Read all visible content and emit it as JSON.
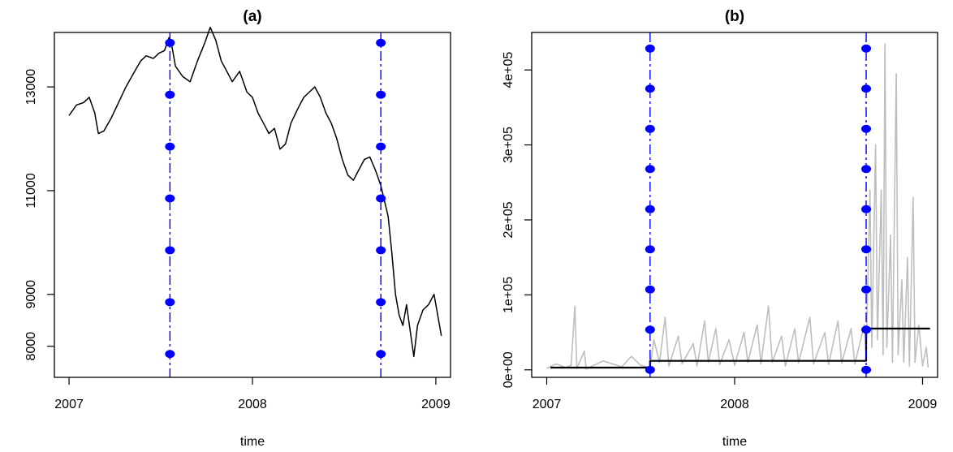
{
  "chart_data": [
    {
      "type": "line",
      "title": "(a)",
      "xlabel": "time",
      "ylabel": "",
      "xlim": [
        2006.92,
        2009.08
      ],
      "ylim": [
        7400,
        14050
      ],
      "x_ticks": [
        2007,
        2008,
        2009
      ],
      "x_tick_labels": [
        "2007",
        "2008",
        "2009"
      ],
      "y_ticks": [
        8000,
        9000,
        11000,
        13000
      ],
      "y_tick_labels": [
        "8000",
        "9000",
        "11000",
        "13000"
      ],
      "grid": false,
      "series": [
        {
          "color": "#000000",
          "points": [
            [
              2007.0,
              12450
            ],
            [
              2007.04,
              12650
            ],
            [
              2007.08,
              12700
            ],
            [
              2007.11,
              12800
            ],
            [
              2007.14,
              12500
            ],
            [
              2007.16,
              12100
            ],
            [
              2007.19,
              12150
            ],
            [
              2007.23,
              12400
            ],
            [
              2007.27,
              12700
            ],
            [
              2007.31,
              13000
            ],
            [
              2007.35,
              13250
            ],
            [
              2007.39,
              13500
            ],
            [
              2007.42,
              13600
            ],
            [
              2007.46,
              13550
            ],
            [
              2007.49,
              13650
            ],
            [
              2007.52,
              13700
            ],
            [
              2007.545,
              13950
            ],
            [
              2007.56,
              13800
            ],
            [
              2007.58,
              13400
            ],
            [
              2007.62,
              13200
            ],
            [
              2007.66,
              13100
            ],
            [
              2007.7,
              13500
            ],
            [
              2007.74,
              13850
            ],
            [
              2007.77,
              14150
            ],
            [
              2007.8,
              13900
            ],
            [
              2007.83,
              13500
            ],
            [
              2007.86,
              13300
            ],
            [
              2007.89,
              13100
            ],
            [
              2007.93,
              13300
            ],
            [
              2007.97,
              12900
            ],
            [
              2008.0,
              12800
            ],
            [
              2008.03,
              12500
            ],
            [
              2008.06,
              12300
            ],
            [
              2008.09,
              12100
            ],
            [
              2008.12,
              12200
            ],
            [
              2008.15,
              11800
            ],
            [
              2008.18,
              11900
            ],
            [
              2008.21,
              12300
            ],
            [
              2008.25,
              12600
            ],
            [
              2008.28,
              12800
            ],
            [
              2008.31,
              12900
            ],
            [
              2008.34,
              13000
            ],
            [
              2008.37,
              12800
            ],
            [
              2008.4,
              12500
            ],
            [
              2008.43,
              12300
            ],
            [
              2008.46,
              12000
            ],
            [
              2008.49,
              11600
            ],
            [
              2008.52,
              11300
            ],
            [
              2008.55,
              11200
            ],
            [
              2008.58,
              11400
            ],
            [
              2008.61,
              11600
            ],
            [
              2008.64,
              11650
            ],
            [
              2008.67,
              11400
            ],
            [
              2008.7,
              11100
            ],
            [
              2008.72,
              10800
            ],
            [
              2008.74,
              10500
            ],
            [
              2008.76,
              9800
            ],
            [
              2008.78,
              9000
            ],
            [
              2008.8,
              8600
            ],
            [
              2008.82,
              8400
            ],
            [
              2008.84,
              8800
            ],
            [
              2008.86,
              8300
            ],
            [
              2008.88,
              7800
            ],
            [
              2008.9,
              8400
            ],
            [
              2008.93,
              8700
            ],
            [
              2008.96,
              8800
            ],
            [
              2008.99,
              9000
            ],
            [
              2009.01,
              8600
            ],
            [
              2009.03,
              8200
            ]
          ]
        }
      ],
      "vlines": [
        {
          "x": 2007.55,
          "color": "#0000ff",
          "markers_y": [
            7850,
            8850,
            9850,
            10850,
            11850,
            12850,
            13850
          ]
        },
        {
          "x": 2008.7,
          "color": "#0000ff",
          "markers_y": [
            7850,
            8850,
            9850,
            10850,
            11850,
            12850,
            13850
          ]
        }
      ]
    },
    {
      "type": "line",
      "title": "(b)",
      "xlabel": "time",
      "ylabel": "",
      "xlim": [
        2006.92,
        2009.08
      ],
      "ylim": [
        -10000,
        450000
      ],
      "x_ticks": [
        2007,
        2008,
        2009
      ],
      "x_tick_labels": [
        "2007",
        "2008",
        "2009"
      ],
      "y_ticks": [
        0,
        100000,
        200000,
        300000,
        400000
      ],
      "y_tick_labels": [
        "0e+00",
        "1e+05",
        "2e+05",
        "3e+05",
        "4e+05"
      ],
      "grid": false,
      "series": [
        {
          "color": "#bebebe",
          "points": [
            [
              2007.0,
              2000
            ],
            [
              2007.05,
              8000
            ],
            [
              2007.1,
              3000
            ],
            [
              2007.13,
              6000
            ],
            [
              2007.15,
              85000
            ],
            [
              2007.16,
              2000
            ],
            [
              2007.2,
              25000
            ],
            [
              2007.21,
              1000
            ],
            [
              2007.3,
              12000
            ],
            [
              2007.4,
              4000
            ],
            [
              2007.45,
              18000
            ],
            [
              2007.5,
              6000
            ],
            [
              2007.55,
              3000
            ],
            [
              2007.57,
              40000
            ],
            [
              2007.6,
              10000
            ],
            [
              2007.63,
              70000
            ],
            [
              2007.65,
              5000
            ],
            [
              2007.7,
              45000
            ],
            [
              2007.72,
              8000
            ],
            [
              2007.78,
              35000
            ],
            [
              2007.8,
              5000
            ],
            [
              2007.84,
              65000
            ],
            [
              2007.86,
              10000
            ],
            [
              2007.9,
              55000
            ],
            [
              2007.92,
              7000
            ],
            [
              2007.97,
              40000
            ],
            [
              2008.0,
              6000
            ],
            [
              2008.05,
              50000
            ],
            [
              2008.07,
              10000
            ],
            [
              2008.12,
              60000
            ],
            [
              2008.14,
              8000
            ],
            [
              2008.18,
              85000
            ],
            [
              2008.2,
              10000
            ],
            [
              2008.25,
              45000
            ],
            [
              2008.27,
              5000
            ],
            [
              2008.32,
              55000
            ],
            [
              2008.34,
              9000
            ],
            [
              2008.4,
              70000
            ],
            [
              2008.42,
              8000
            ],
            [
              2008.48,
              50000
            ],
            [
              2008.5,
              7000
            ],
            [
              2008.55,
              65000
            ],
            [
              2008.57,
              9000
            ],
            [
              2008.62,
              55000
            ],
            [
              2008.64,
              8000
            ],
            [
              2008.69,
              60000
            ],
            [
              2008.7,
              20000
            ],
            [
              2008.72,
              240000
            ],
            [
              2008.73,
              30000
            ],
            [
              2008.75,
              300000
            ],
            [
              2008.76,
              40000
            ],
            [
              2008.78,
              240000
            ],
            [
              2008.79,
              20000
            ],
            [
              2008.8,
              435000
            ],
            [
              2008.81,
              30000
            ],
            [
              2008.83,
              180000
            ],
            [
              2008.84,
              10000
            ],
            [
              2008.86,
              395000
            ],
            [
              2008.87,
              20000
            ],
            [
              2008.89,
              120000
            ],
            [
              2008.9,
              10000
            ],
            [
              2008.92,
              150000
            ],
            [
              2008.93,
              5000
            ],
            [
              2008.95,
              230000
            ],
            [
              2008.96,
              10000
            ],
            [
              2008.98,
              60000
            ],
            [
              2009.0,
              5000
            ],
            [
              2009.02,
              30000
            ],
            [
              2009.03,
              3000
            ]
          ]
        },
        {
          "color": "#000000",
          "step": true,
          "points": [
            [
              2007.02,
              3000
            ],
            [
              2007.55,
              3000
            ],
            [
              2007.55,
              12000
            ],
            [
              2008.7,
              12000
            ],
            [
              2008.7,
              55000
            ],
            [
              2009.04,
              55000
            ]
          ]
        }
      ],
      "vlines": [
        {
          "x": 2007.55,
          "color": "#0000ff",
          "markers_y": [
            0,
            53571,
            107143,
            160714,
            214286,
            267857,
            321429,
            375000,
            428571
          ]
        },
        {
          "x": 2008.7,
          "color": "#0000ff",
          "markers_y": [
            0,
            53571,
            107143,
            160714,
            214286,
            267857,
            321429,
            375000,
            428571
          ]
        }
      ]
    }
  ]
}
